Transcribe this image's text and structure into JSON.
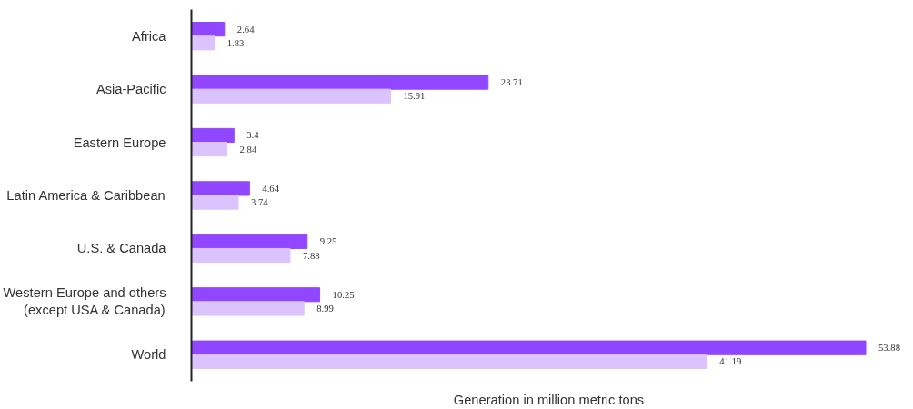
{
  "chart_data": {
    "type": "bar",
    "orientation": "horizontal",
    "categories": [
      "Africa",
      "Asia-Pacific",
      "Eastern Europe",
      "Latin America & Caribbean",
      "U.S. & Canada",
      "Western Europe and others\n(except USA & Canada)",
      "World"
    ],
    "series": [
      {
        "color": "#9146ff",
        "values": [
          2.64,
          23.71,
          3.4,
          4.64,
          9.25,
          10.25,
          53.88
        ]
      },
      {
        "color": "#dbc4fd",
        "values": [
          1.83,
          15.91,
          2.84,
          3.74,
          7.88,
          8.99,
          41.19
        ]
      }
    ],
    "xlabel": "Generation in million metric tons",
    "tick_labels": "y",
    "data_labels": true
  }
}
